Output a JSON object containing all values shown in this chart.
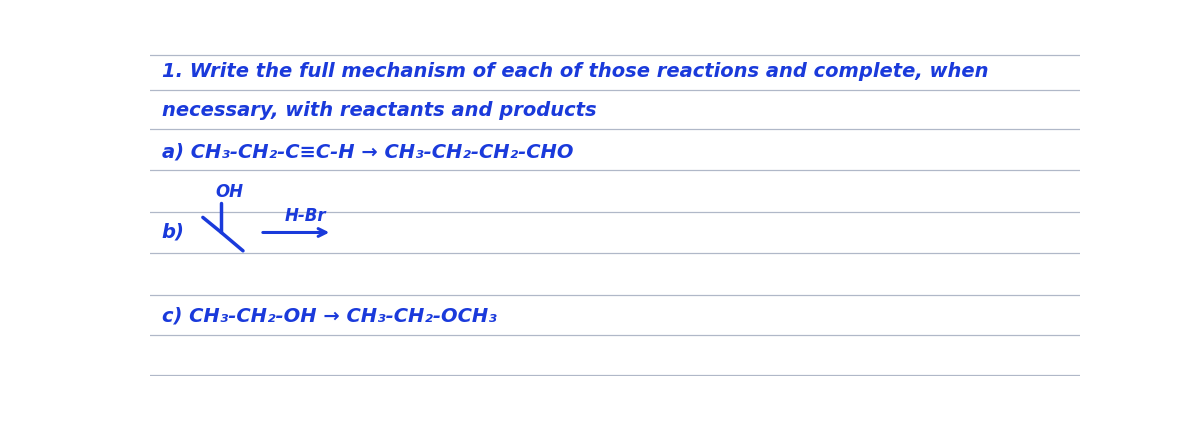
{
  "background_color": "#ffffff",
  "line_color": "#b0b8c8",
  "text_color": "#1a3adb",
  "title_line1": "1. Write the full mechanism of each of those reactions and complete, when",
  "title_line2": "necessary, with reactants and products",
  "reaction_a": "a) CH₃-CH₂-C≡C-H → CH₃-CH₂-CH₂-CHO",
  "reaction_b_label": "b)",
  "reaction_b_oh": "OH",
  "reaction_b_hbr": "H-Br",
  "reaction_c": "c) CH₃-CH₂-OH → CH₃-CH₂-OCH₃",
  "figsize": [
    12.0,
    4.23
  ],
  "dpi": 100
}
